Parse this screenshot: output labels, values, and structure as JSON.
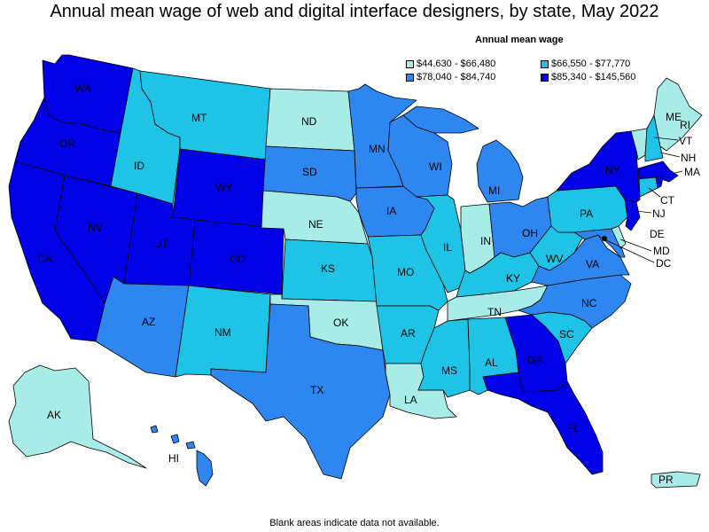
{
  "title": "Annual mean wage of web and digital interface designers, by state, May 2022",
  "legend": {
    "title": "Annual mean wage",
    "items": [
      {
        "label": "$44,630 - $66,480",
        "color": "#a8ece8"
      },
      {
        "label": "$66,550 - $77,770",
        "color": "#1ec3e6"
      },
      {
        "label": "$78,040 - $84,740",
        "color": "#2e86f0"
      },
      {
        "label": "$85,340 - $145,560",
        "color": "#0000e8"
      }
    ]
  },
  "footnote": "Blank areas indicate data not available.",
  "states": {
    "WA": "WA",
    "OR": "OR",
    "CA": "CA",
    "NV": "NV",
    "ID": "ID",
    "MT": "MT",
    "WY": "WY",
    "UT": "UT",
    "CO": "CO",
    "AZ": "AZ",
    "NM": "NM",
    "ND": "ND",
    "SD": "SD",
    "NE": "NE",
    "KS": "KS",
    "OK": "OK",
    "TX": "TX",
    "MN": "MN",
    "IA": "IA",
    "MO": "MO",
    "AR": "AR",
    "LA": "LA",
    "WI": "WI",
    "IL": "IL",
    "MI": "MI",
    "IN": "IN",
    "OH": "OH",
    "KY": "KY",
    "TN": "TN",
    "MS": "MS",
    "AL": "AL",
    "GA": "GA",
    "FL": "FL",
    "SC": "SC",
    "NC": "NC",
    "VA": "VA",
    "WV": "WV",
    "PA": "PA",
    "NY": "NY",
    "ME": "ME",
    "VT": "VT",
    "NH": "NH",
    "MA": "MA",
    "RI": "RI",
    "CT": "CT",
    "NJ": "NJ",
    "DE": "DE",
    "MD": "MD",
    "DC": "DC",
    "AK": "AK",
    "HI": "HI",
    "PR": "PR"
  }
}
